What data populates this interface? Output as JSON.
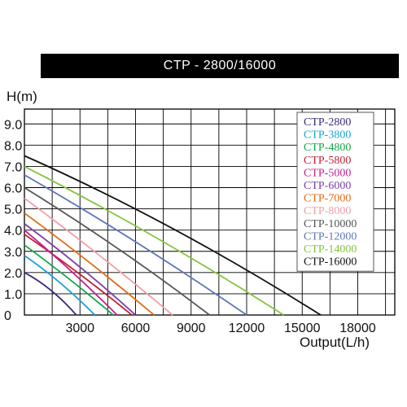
{
  "chart_data": {
    "type": "line",
    "title": "CTP - 2800/16000",
    "ylabel": "H(m)",
    "xlabel": "Output(L/h)",
    "xlim": [
      0,
      20000
    ],
    "ylim": [
      0,
      9.7
    ],
    "x_ticks": [
      3000,
      6000,
      9000,
      12000,
      15000,
      18000
    ],
    "x_tick_labels": [
      "3000",
      "6000",
      "9000",
      "12000",
      "15000",
      "18000"
    ],
    "y_ticks": [
      0,
      1,
      2,
      3,
      4,
      5,
      6,
      7,
      8,
      9
    ],
    "y_tick_labels": [
      "0",
      "1.0",
      "2.0",
      "3.0",
      "4.0",
      "5.0",
      "6.0",
      "7.0",
      "8.0",
      "9.0"
    ],
    "grid": true,
    "legend_position": "top-right",
    "series": [
      {
        "name": "CTP-2800",
        "color": "#3b2a7a",
        "points": [
          [
            0,
            2.0
          ],
          [
            1500,
            1.3
          ],
          [
            2800,
            0.0
          ]
        ]
      },
      {
        "name": "CTP-3800",
        "color": "#1aa3d6",
        "points": [
          [
            0,
            2.8
          ],
          [
            2000,
            1.6
          ],
          [
            3800,
            0.0
          ]
        ]
      },
      {
        "name": "CTP-4800",
        "color": "#12a84a",
        "points": [
          [
            0,
            3.3
          ],
          [
            2500,
            1.7
          ],
          [
            4800,
            0.0
          ]
        ]
      },
      {
        "name": "CTP-5800",
        "color": "#c0223a",
        "points": [
          [
            0,
            3.8
          ],
          [
            3000,
            2.0
          ],
          [
            5800,
            0.0
          ]
        ]
      },
      {
        "name": "CTP-5000",
        "color": "#c41e8a",
        "points": [
          [
            0,
            4.0
          ],
          [
            2600,
            2.1
          ],
          [
            5000,
            0.0
          ]
        ]
      },
      {
        "name": "CTP-6000",
        "color": "#7b3fa6",
        "points": [
          [
            0,
            4.3
          ],
          [
            3100,
            2.3
          ],
          [
            6000,
            0.0
          ]
        ]
      },
      {
        "name": "CTP-7000",
        "color": "#e36b12",
        "points": [
          [
            0,
            4.8
          ],
          [
            3600,
            2.5
          ],
          [
            7000,
            0.0
          ]
        ]
      },
      {
        "name": "CTP-8000",
        "color": "#f0a0a8",
        "points": [
          [
            0,
            5.5
          ],
          [
            4200,
            2.8
          ],
          [
            8000,
            0.0
          ]
        ]
      },
      {
        "name": "CTP-10000",
        "color": "#555555",
        "points": [
          [
            0,
            6.0
          ],
          [
            5200,
            3.2
          ],
          [
            10000,
            0.0
          ]
        ]
      },
      {
        "name": "CTP-12000",
        "color": "#5b75b8",
        "points": [
          [
            0,
            6.6
          ],
          [
            6000,
            3.6
          ],
          [
            12000,
            0.0
          ]
        ]
      },
      {
        "name": "CTP-14000",
        "color": "#86c440",
        "points": [
          [
            0,
            7.0
          ],
          [
            7000,
            3.9
          ],
          [
            14000,
            0.0
          ]
        ]
      },
      {
        "name": "CTP-16000",
        "color": "#111111",
        "points": [
          [
            0,
            7.5
          ],
          [
            8000,
            4.4
          ],
          [
            16000,
            0.0
          ]
        ]
      }
    ]
  }
}
